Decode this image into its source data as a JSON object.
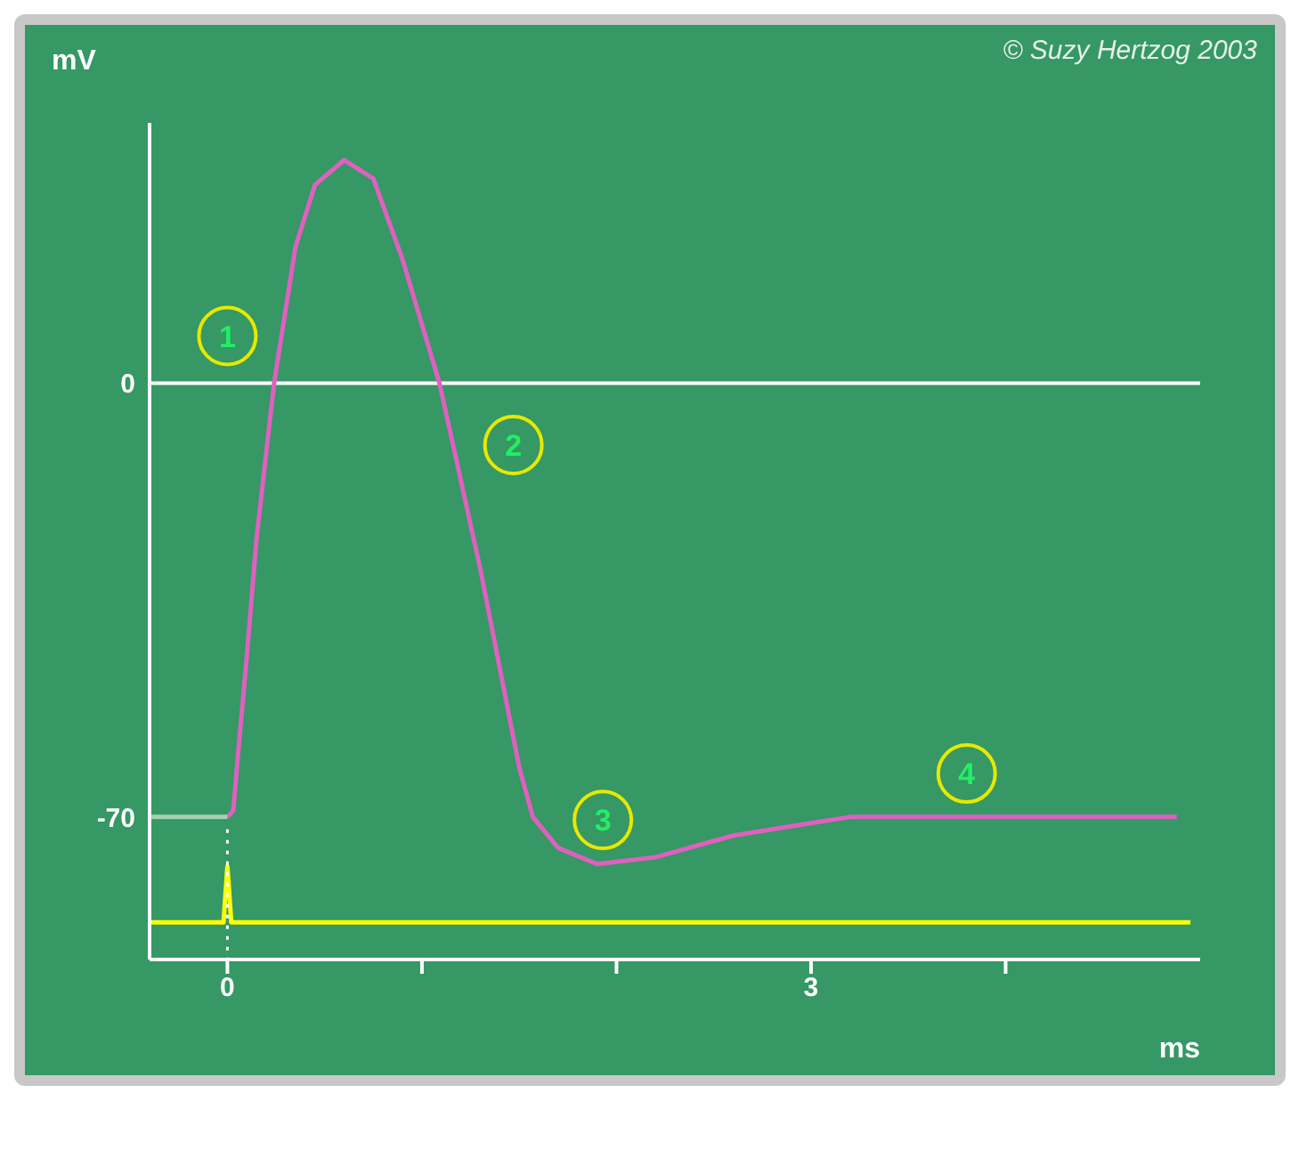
{
  "chart_data": {
    "type": "line",
    "xlabel": "ms",
    "ylabel": "mV",
    "xlim": [
      -0.4,
      5
    ],
    "ylim": [
      -93,
      42
    ],
    "xticks": [
      0,
      {
        "value": 1,
        "label": null
      },
      {
        "value": 2,
        "label": null
      },
      3,
      {
        "value": 4,
        "label": null
      }
    ],
    "yticks": [
      -70,
      0
    ],
    "marker": "none",
    "series": [
      {
        "color": "#e060c0",
        "x": [
          0,
          0.03,
          0.06,
          0.1,
          0.15,
          0.24,
          0.35,
          0.45,
          0.6,
          0.75,
          0.9,
          1.09,
          1.3,
          1.5,
          1.57,
          1.7,
          1.9,
          2.2,
          2.6,
          3.0,
          3.2,
          4.88
        ],
        "values": [
          -70,
          -69,
          -58,
          -44,
          -25,
          0,
          22,
          32,
          36,
          33,
          20,
          0,
          -30,
          -62,
          -70,
          -75,
          -77.6,
          -76.5,
          -73,
          -71,
          -70,
          -70
        ]
      },
      {
        "color": "#a8cfb4",
        "x": [
          -0.4,
          0
        ],
        "values": [
          -70,
          -70
        ]
      },
      {
        "color": "#ffff00",
        "x": [
          -0.4,
          -0.02,
          0,
          0.02,
          4.95
        ],
        "values": [
          -87,
          -87,
          -78,
          -87,
          -87
        ]
      },
      {
        "color": "#ffffff",
        "line_style": "dotted",
        "x": [
          0,
          0
        ],
        "values": [
          -72,
          -93
        ]
      }
    ],
    "ref_lines": [
      {
        "axis": "y",
        "value": 0,
        "color": "#ffffff"
      }
    ],
    "annotations": [
      {
        "text": "1",
        "x": 0,
        "y": 7.6
      },
      {
        "text": "2",
        "x": 1.47,
        "y": -10
      },
      {
        "text": "3",
        "x": 1.93,
        "y": -70.5
      },
      {
        "text": "4",
        "x": 3.8,
        "y": -63
      },
      "© Suzy Hertzog 2003"
    ]
  }
}
